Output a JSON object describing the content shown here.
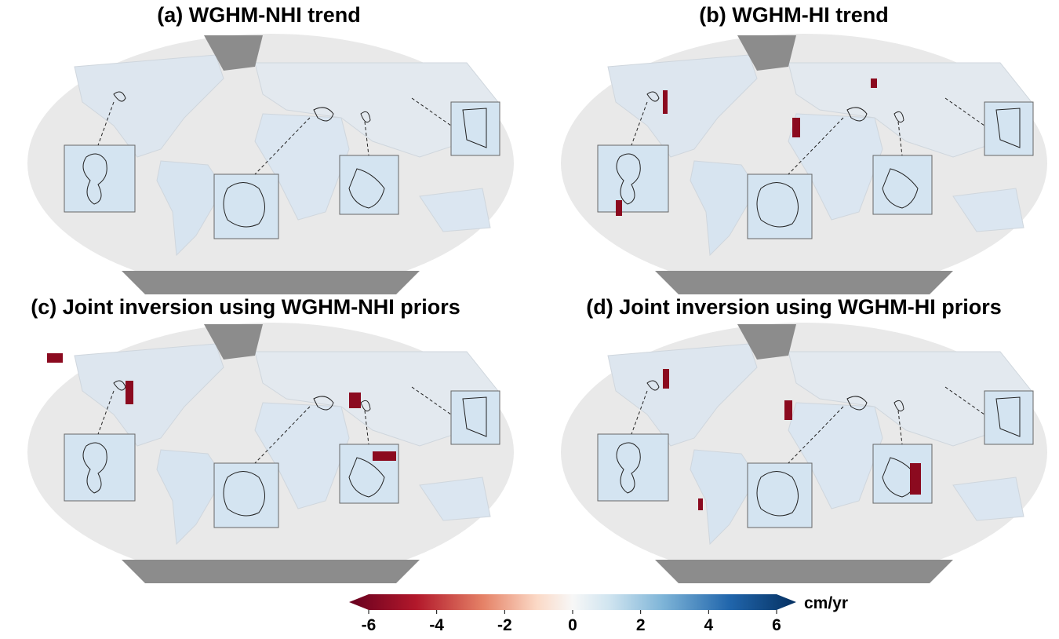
{
  "panels": [
    {
      "title": "(a) WGHM-NHI trend"
    },
    {
      "title": "(b) WGHM-HI trend"
    },
    {
      "title": "(c) Joint inversion using WGHM-NHI priors"
    },
    {
      "title": "(d) Joint inversion using WGHM-HI priors"
    }
  ],
  "colorbar": {
    "label": "cm/yr",
    "lim": [
      -6,
      6
    ],
    "ticks": [
      -6,
      -4,
      -2,
      0,
      2,
      4,
      6
    ]
  }
}
